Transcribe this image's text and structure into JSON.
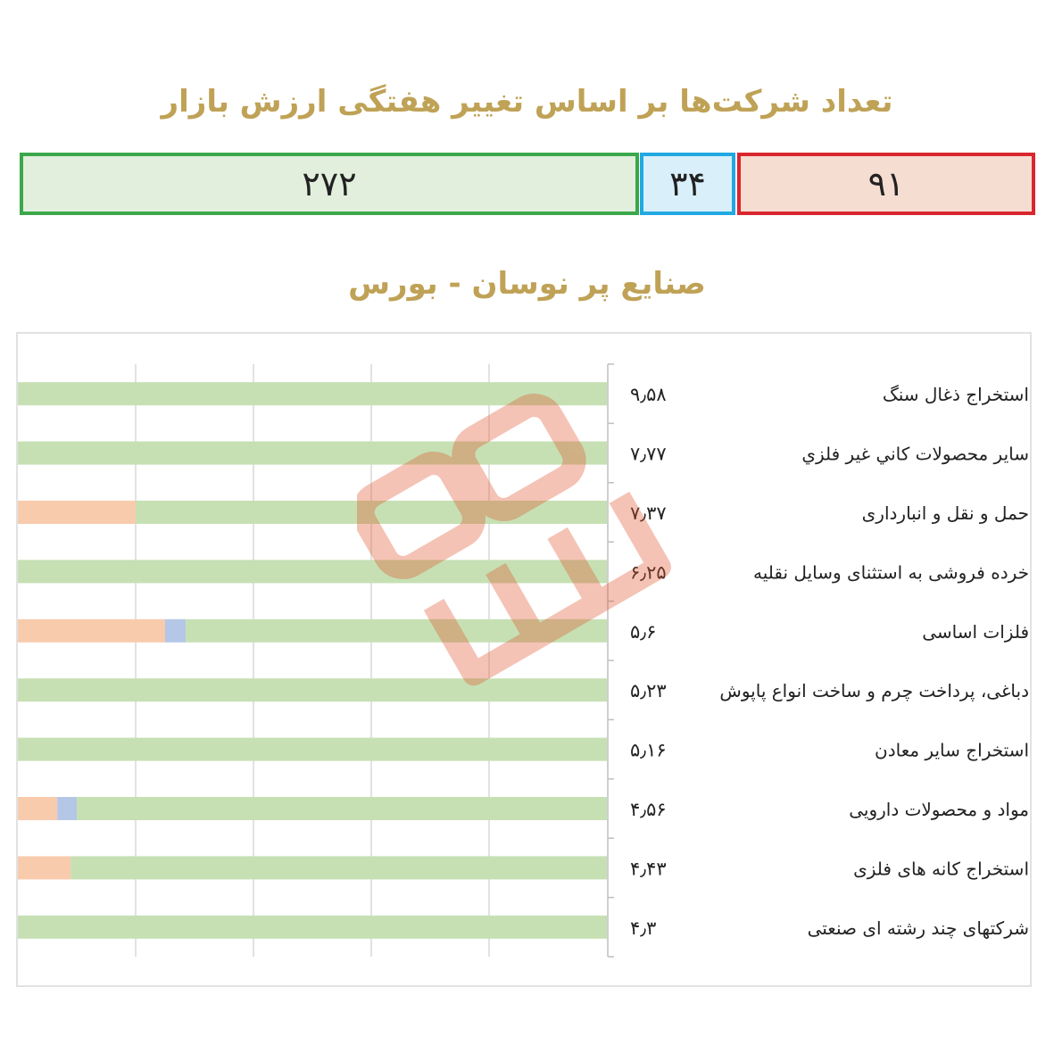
{
  "header": {
    "title": "تعداد شرکت‌ها بر اساس تغییر هفتگی ارزش بازار",
    "counts": {
      "negative": "۹۱",
      "neutral": "۳۴",
      "positive": "۲۷۲"
    }
  },
  "colors": {
    "title": "#bfa256",
    "positive_fill": "#c6e0b4",
    "neutral_fill": "#b4c7e7",
    "negative_fill": "#f8cbad",
    "positive_border": "#3aa84a",
    "neutral_border": "#21a9e1",
    "negative_border": "#d9262f"
  },
  "chart_data": {
    "type": "bar",
    "orientation": "horizontal-stacked",
    "title": "صنایع پر نوسان - بورس",
    "grid": true,
    "categories": [
      "استخراج ذغال سنگ",
      "ساير محصولات كاني غير فلزي",
      "حمل و نقل و انبارداری",
      "خرده فروشی به استثنای وسایل نقلیه",
      "فلزات اساسی",
      "دباغی، پرداخت چرم و ساخت انواع پاپوش",
      "استخراج سایر معادن",
      "مواد و محصولات دارویی",
      "استخراج کانه های فلزی",
      "شرکتهای چند رشته ای صنعتی"
    ],
    "volatility_labels": [
      "۹٫۵۸",
      "۷٫۷۷",
      "۷٫۳۷",
      "۶٫۲۵",
      "۵٫۶",
      "۵٫۲۳",
      "۵٫۱۶",
      "۴٫۵۶",
      "۴٫۴۳",
      "۴٫۳"
    ],
    "series": [
      {
        "key": "negative",
        "color": "#f8cbad",
        "values": [
          0,
          0,
          20,
          0,
          25,
          0,
          0,
          6.7,
          9,
          0
        ]
      },
      {
        "key": "neutral",
        "color": "#b4c7e7",
        "values": [
          0,
          0,
          0,
          0,
          3.5,
          0,
          0,
          3.3,
          0,
          0
        ]
      },
      {
        "key": "positive",
        "color": "#c6e0b4",
        "values": [
          100,
          100,
          80,
          100,
          71.5,
          100,
          100,
          90,
          91,
          100
        ]
      }
    ],
    "xlim": [
      0,
      100
    ]
  }
}
